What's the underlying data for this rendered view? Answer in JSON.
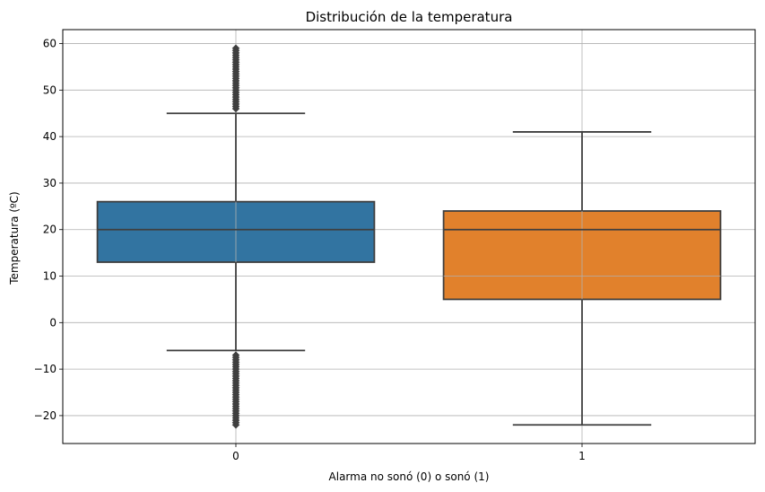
{
  "chart_data": {
    "type": "box",
    "title": "Distribución de la temperatura",
    "xlabel": "Alarma no sonó (0) o sonó (1)",
    "ylabel": "Temperatura (ºC)",
    "ylim": [
      -26,
      63
    ],
    "yticks": [
      60,
      50,
      40,
      30,
      20,
      10,
      0,
      -10,
      -20
    ],
    "ytick_labels": [
      "60",
      "50",
      "40",
      "30",
      "20",
      "10",
      "0",
      "−10",
      "−20"
    ],
    "grid": true,
    "categories": [
      "0",
      "1"
    ],
    "boxes": [
      {
        "category": "0",
        "color": "#3274a1",
        "whisker_low": -6,
        "q1": 13,
        "median": 20,
        "q3": 26,
        "whisker_high": 45,
        "outliers_high": [
          46,
          46.5,
          47,
          47.5,
          48,
          48.5,
          49,
          49.5,
          50,
          50.5,
          51,
          51.5,
          52,
          52.5,
          53,
          53.5,
          54,
          54.5,
          55,
          55.5,
          56,
          56.5,
          57,
          57.5,
          58,
          58.5,
          59
        ],
        "outliers_low": [
          -7,
          -7.5,
          -8,
          -8.5,
          -9,
          -9.5,
          -10,
          -10.5,
          -11,
          -11.5,
          -12,
          -12.5,
          -13,
          -13.5,
          -14,
          -14.5,
          -15,
          -15.5,
          -16,
          -16.5,
          -17,
          -17.5,
          -18,
          -18.5,
          -19,
          -19.5,
          -20,
          -20.5,
          -21,
          -21.5,
          -22
        ]
      },
      {
        "category": "1",
        "color": "#e1812c",
        "whisker_low": -22,
        "q1": 5,
        "median": 20,
        "q3": 24,
        "whisker_high": 41,
        "outliers_high": [],
        "outliers_low": []
      }
    ]
  }
}
